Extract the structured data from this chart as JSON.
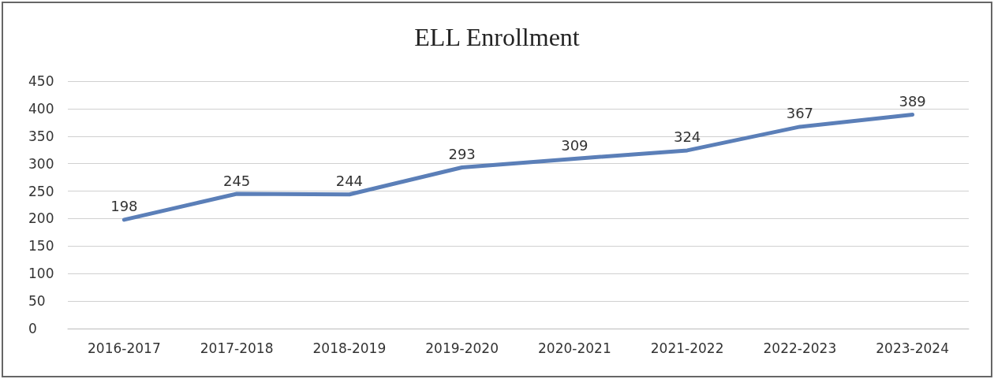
{
  "chart_data": {
    "type": "line",
    "title": "ELL Enrollment",
    "categories": [
      "2016-2017",
      "2017-2018",
      "2018-2019",
      "2019-2020",
      "2020-2021",
      "2021-2022",
      "2022-2023",
      "2023-2024"
    ],
    "series": [
      {
        "color": "#5b7fb8",
        "values": [
          198,
          245,
          244,
          293,
          309,
          324,
          367,
          389
        ]
      }
    ],
    "ylim": [
      0,
      450
    ],
    "yticks": [
      0,
      50,
      100,
      150,
      200,
      250,
      300,
      350,
      400,
      450
    ],
    "grid": "y",
    "marker": "none",
    "line_style": "solid",
    "data_labels": true
  }
}
